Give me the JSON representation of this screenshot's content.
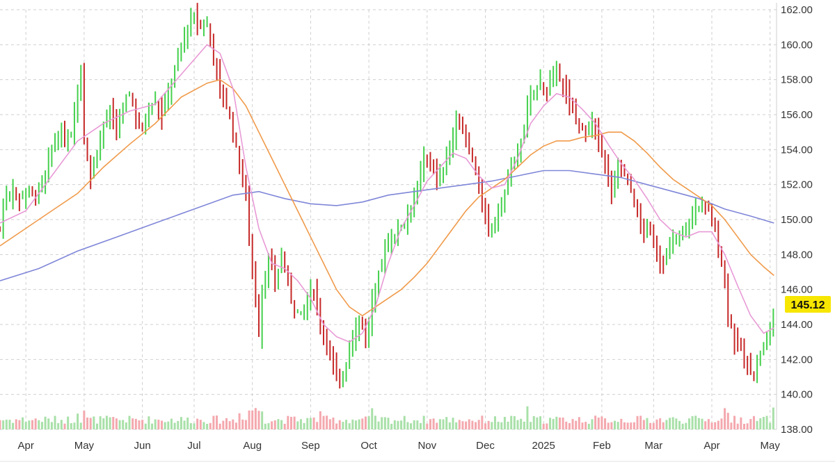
{
  "colors": {
    "up": "#44d04c",
    "down": "#c62828",
    "volume_up": "#a8e0a8",
    "volume_down": "#f4a8ae",
    "ma_fast": "#e89ad6",
    "ma_mid": "#f09a4a",
    "ma_slow": "#7f86d8",
    "price_tag_bg": "#f7e600",
    "grid": "#cfcfcf"
  },
  "chart_data": {
    "type": "candlestick",
    "y_axis": {
      "position": "right",
      "range": [
        138,
        162
      ],
      "ticks": [
        "162.00",
        "160.00",
        "158.00",
        "156.00",
        "154.00",
        "152.00",
        "150.00",
        "148.00",
        "146.00",
        "144.00",
        "142.00",
        "140.00",
        "138.00"
      ]
    },
    "x_axis": {
      "labels": [
        {
          "label": "Apr",
          "week": 2
        },
        {
          "label": "May",
          "week": 6.5
        },
        {
          "label": "Jun",
          "week": 11
        },
        {
          "label": "Jul",
          "week": 15
        },
        {
          "label": "Aug",
          "week": 19.5
        },
        {
          "label": "Sep",
          "week": 24
        },
        {
          "label": "Oct",
          "week": 28.5
        },
        {
          "label": "Nov",
          "week": 33
        },
        {
          "label": "Dec",
          "week": 37.5
        },
        {
          "label": "2025",
          "week": 42
        },
        {
          "label": "Feb",
          "week": 46.5
        },
        {
          "label": "Mar",
          "week": 50.5
        },
        {
          "label": "Apr",
          "week": 55
        },
        {
          "label": "May",
          "week": 59.5
        }
      ],
      "week_range": [
        0,
        60
      ]
    },
    "last_price": "145.12",
    "price_series": [
      [
        0,
        149.5
      ],
      [
        0.5,
        151.5
      ],
      [
        1,
        151.7
      ],
      [
        1.5,
        151.2
      ],
      [
        2,
        151.8
      ],
      [
        2.5,
        151.4
      ],
      [
        3,
        151.6
      ],
      [
        3.5,
        152.5
      ],
      [
        4,
        154.0
      ],
      [
        4.5,
        154.8
      ],
      [
        5,
        154.5
      ],
      [
        5.5,
        155.0
      ],
      [
        6,
        157.5
      ],
      [
        6.2,
        159.5
      ],
      [
        6.5,
        154.5
      ],
      [
        7,
        152.5
      ],
      [
        7.5,
        154.0
      ],
      [
        8,
        155.5
      ],
      [
        8.5,
        156.0
      ],
      [
        9,
        155.0
      ],
      [
        9.5,
        156.5
      ],
      [
        10,
        157.2
      ],
      [
        10.5,
        156.0
      ],
      [
        11,
        155.0
      ],
      [
        11.5,
        156.5
      ],
      [
        12,
        156.8
      ],
      [
        12.5,
        156.0
      ],
      [
        13,
        157.5
      ],
      [
        13.5,
        158.5
      ],
      [
        14,
        160.0
      ],
      [
        14.5,
        161.0
      ],
      [
        15,
        161.5
      ],
      [
        15.5,
        161.0
      ],
      [
        16,
        161.2
      ],
      [
        16.5,
        159.5
      ],
      [
        17,
        157.5
      ],
      [
        17.5,
        156.5
      ],
      [
        18,
        155.0
      ],
      [
        18.5,
        153.0
      ],
      [
        19,
        151.5
      ],
      [
        19.2,
        149.5
      ],
      [
        19.5,
        147.0
      ],
      [
        20,
        143.5
      ],
      [
        20.3,
        146.5
      ],
      [
        20.8,
        147.5
      ],
      [
        21.3,
        146.5
      ],
      [
        21.8,
        148.0
      ],
      [
        22.3,
        146.0
      ],
      [
        22.8,
        145.0
      ],
      [
        23.3,
        144.5
      ],
      [
        23.8,
        145.5
      ],
      [
        24.3,
        146.0
      ],
      [
        24.8,
        144.0
      ],
      [
        25.3,
        143.0
      ],
      [
        25.8,
        141.5
      ],
      [
        26.3,
        140.5
      ],
      [
        26.8,
        142.0
      ],
      [
        27.3,
        143.5
      ],
      [
        27.8,
        144.5
      ],
      [
        28.3,
        143.0
      ],
      [
        28.8,
        145.5
      ],
      [
        29.3,
        147.0
      ],
      [
        29.8,
        148.5
      ],
      [
        30.3,
        149.0
      ],
      [
        30.8,
        149.5
      ],
      [
        31.3,
        150.0
      ],
      [
        31.8,
        151.0
      ],
      [
        32.3,
        152.0
      ],
      [
        32.8,
        153.5
      ],
      [
        33.3,
        153.5
      ],
      [
        33.8,
        152.0
      ],
      [
        34.3,
        153.0
      ],
      [
        34.8,
        154.5
      ],
      [
        35.3,
        155.5
      ],
      [
        35.8,
        155.0
      ],
      [
        36.3,
        154.0
      ],
      [
        36.8,
        152.5
      ],
      [
        37.3,
        150.5
      ],
      [
        37.8,
        149.5
      ],
      [
        38.3,
        150.0
      ],
      [
        38.8,
        151.0
      ],
      [
        39.3,
        152.5
      ],
      [
        39.8,
        153.5
      ],
      [
        40.3,
        154.5
      ],
      [
        40.8,
        156.5
      ],
      [
        41.3,
        157.5
      ],
      [
        41.8,
        157.8
      ],
      [
        42.3,
        157.5
      ],
      [
        42.8,
        158.0
      ],
      [
        43.3,
        158.3
      ],
      [
        43.8,
        157.0
      ],
      [
        44.3,
        156.0
      ],
      [
        44.8,
        155.5
      ],
      [
        45.3,
        155.0
      ],
      [
        45.8,
        155.5
      ],
      [
        46.3,
        154.5
      ],
      [
        46.8,
        153.0
      ],
      [
        47.3,
        151.5
      ],
      [
        47.8,
        153.5
      ],
      [
        48.3,
        152.5
      ],
      [
        48.8,
        151.5
      ],
      [
        49.3,
        150.0
      ],
      [
        49.8,
        149.5
      ],
      [
        50.3,
        149.0
      ],
      [
        50.8,
        148.0
      ],
      [
        51.3,
        147.5
      ],
      [
        51.8,
        148.5
      ],
      [
        52.3,
        149.0
      ],
      [
        52.8,
        149.5
      ],
      [
        53.3,
        150.0
      ],
      [
        53.8,
        150.5
      ],
      [
        54.3,
        151.0
      ],
      [
        54.8,
        150.5
      ],
      [
        55.3,
        149.0
      ],
      [
        55.8,
        147.5
      ],
      [
        56.3,
        144.5
      ],
      [
        56.8,
        143.0
      ],
      [
        57.3,
        142.5
      ],
      [
        57.8,
        141.5
      ],
      [
        58.3,
        141.0
      ],
      [
        58.8,
        142.5
      ],
      [
        59.3,
        143.0
      ],
      [
        59.8,
        145.12
      ]
    ],
    "ma_fast": [
      [
        0,
        149.8
      ],
      [
        2,
        150.5
      ],
      [
        4,
        152.5
      ],
      [
        6,
        154.5
      ],
      [
        8,
        155.5
      ],
      [
        10,
        156.2
      ],
      [
        12,
        156.6
      ],
      [
        14,
        158.3
      ],
      [
        16,
        160.0
      ],
      [
        17,
        159.5
      ],
      [
        18,
        157.5
      ],
      [
        19,
        153.0
      ],
      [
        20,
        149.5
      ],
      [
        21,
        147.5
      ],
      [
        22,
        147.2
      ],
      [
        23,
        146.5
      ],
      [
        24,
        145.5
      ],
      [
        25,
        144.0
      ],
      [
        26,
        143.3
      ],
      [
        27,
        143.0
      ],
      [
        28,
        143.5
      ],
      [
        29,
        145.0
      ],
      [
        30,
        147.5
      ],
      [
        31,
        149.5
      ],
      [
        32,
        150.8
      ],
      [
        33,
        152.2
      ],
      [
        34,
        153.0
      ],
      [
        35,
        153.8
      ],
      [
        36,
        153.5
      ],
      [
        37,
        152.5
      ],
      [
        38,
        151.8
      ],
      [
        39,
        152.0
      ],
      [
        40,
        153.5
      ],
      [
        41,
        155.5
      ],
      [
        42,
        156.5
      ],
      [
        43,
        157.2
      ],
      [
        44,
        157.0
      ],
      [
        45,
        156.3
      ],
      [
        46,
        155.5
      ],
      [
        47,
        154.3
      ],
      [
        48,
        153.2
      ],
      [
        49,
        152.3
      ],
      [
        50,
        151.2
      ],
      [
        51,
        150.0
      ],
      [
        52,
        149.3
      ],
      [
        53,
        149.0
      ],
      [
        54,
        149.3
      ],
      [
        55,
        149.3
      ],
      [
        56,
        148.0
      ],
      [
        57,
        146.2
      ],
      [
        58,
        144.5
      ],
      [
        59,
        143.5
      ],
      [
        59.8,
        143.8
      ]
    ],
    "ma_mid": [
      [
        0,
        148.5
      ],
      [
        2,
        149.5
      ],
      [
        4,
        150.5
      ],
      [
        6,
        151.5
      ],
      [
        8,
        153.0
      ],
      [
        10,
        154.3
      ],
      [
        12,
        155.5
      ],
      [
        14,
        157.0
      ],
      [
        16,
        157.8
      ],
      [
        17,
        158.0
      ],
      [
        18,
        157.5
      ],
      [
        19,
        156.5
      ],
      [
        20,
        155.0
      ],
      [
        21,
        153.5
      ],
      [
        22,
        152.0
      ],
      [
        23,
        150.5
      ],
      [
        24,
        149.0
      ],
      [
        25,
        147.5
      ],
      [
        26,
        146.0
      ],
      [
        27,
        145.0
      ],
      [
        28,
        144.5
      ],
      [
        29,
        145.0
      ],
      [
        30,
        145.5
      ],
      [
        31,
        146.0
      ],
      [
        32,
        146.7
      ],
      [
        33,
        147.5
      ],
      [
        34,
        148.5
      ],
      [
        35,
        149.5
      ],
      [
        36,
        150.5
      ],
      [
        37,
        151.3
      ],
      [
        38,
        151.8
      ],
      [
        39,
        152.3
      ],
      [
        40,
        153.0
      ],
      [
        41,
        153.7
      ],
      [
        42,
        154.2
      ],
      [
        43,
        154.5
      ],
      [
        44,
        154.5
      ],
      [
        45,
        154.7
      ],
      [
        46,
        154.8
      ],
      [
        47,
        155.0
      ],
      [
        48,
        155.0
      ],
      [
        49,
        154.5
      ],
      [
        50,
        153.8
      ],
      [
        51,
        153.0
      ],
      [
        52,
        152.3
      ],
      [
        53,
        151.8
      ],
      [
        54,
        151.3
      ],
      [
        55,
        150.8
      ],
      [
        56,
        150.0
      ],
      [
        57,
        149.0
      ],
      [
        58,
        148.0
      ],
      [
        59,
        147.3
      ],
      [
        59.8,
        146.8
      ]
    ],
    "ma_slow": [
      [
        0,
        146.5
      ],
      [
        3,
        147.2
      ],
      [
        6,
        148.2
      ],
      [
        9,
        149.0
      ],
      [
        12,
        149.8
      ],
      [
        15,
        150.6
      ],
      [
        18,
        151.4
      ],
      [
        20,
        151.6
      ],
      [
        22,
        151.2
      ],
      [
        24,
        150.9
      ],
      [
        26,
        150.8
      ],
      [
        28,
        151.0
      ],
      [
        30,
        151.4
      ],
      [
        32,
        151.6
      ],
      [
        34,
        151.8
      ],
      [
        36,
        152.0
      ],
      [
        38,
        152.2
      ],
      [
        40,
        152.5
      ],
      [
        42,
        152.8
      ],
      [
        44,
        152.8
      ],
      [
        46,
        152.6
      ],
      [
        48,
        152.4
      ],
      [
        50,
        152.0
      ],
      [
        52,
        151.6
      ],
      [
        54,
        151.2
      ],
      [
        56,
        150.6
      ],
      [
        58,
        150.2
      ],
      [
        59.8,
        149.8
      ]
    ]
  }
}
